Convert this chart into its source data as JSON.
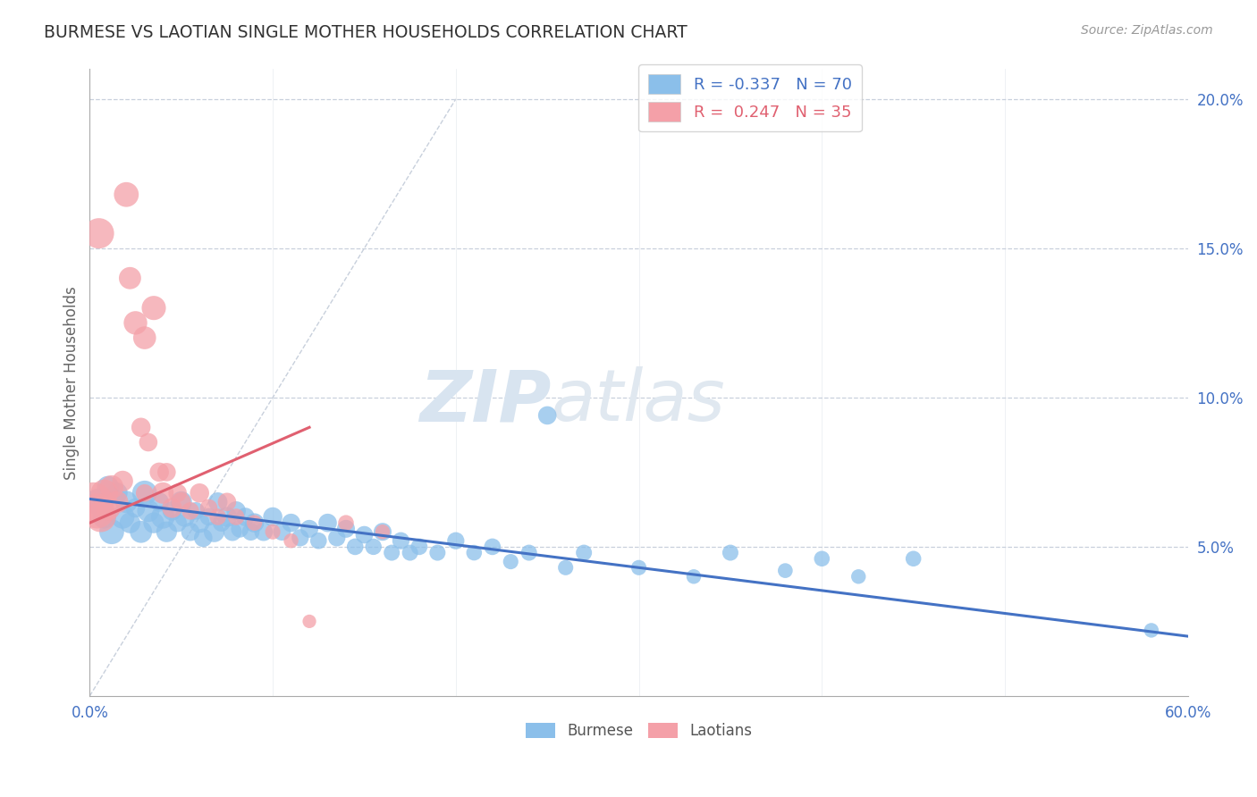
{
  "title": "BURMESE VS LAOTIAN SINGLE MOTHER HOUSEHOLDS CORRELATION CHART",
  "source": "Source: ZipAtlas.com",
  "ylabel": "Single Mother Households",
  "yticks": [
    0.0,
    0.05,
    0.1,
    0.15,
    0.2
  ],
  "ytick_labels": [
    "",
    "5.0%",
    "10.0%",
    "15.0%",
    "20.0%"
  ],
  "xlim": [
    0.0,
    0.6
  ],
  "ylim": [
    0.0,
    0.21
  ],
  "blue_R": -0.337,
  "blue_N": 70,
  "pink_R": 0.247,
  "pink_N": 35,
  "blue_color": "#8BBFEA",
  "pink_color": "#F4A0A8",
  "blue_line_color": "#4472C4",
  "pink_line_color": "#E06070",
  "grid_color": "#C8D0DC",
  "diag_color": "#C8D0DC",
  "watermark_color": "#D8E4F0",
  "blue_trend_x": [
    0.0,
    0.6
  ],
  "blue_trend_y": [
    0.066,
    0.02
  ],
  "pink_trend_x": [
    0.0,
    0.12
  ],
  "pink_trend_y": [
    0.058,
    0.09
  ],
  "blue_scatter_x": [
    0.005,
    0.008,
    0.01,
    0.012,
    0.015,
    0.018,
    0.02,
    0.022,
    0.025,
    0.028,
    0.03,
    0.032,
    0.035,
    0.038,
    0.04,
    0.042,
    0.045,
    0.048,
    0.05,
    0.052,
    0.055,
    0.058,
    0.06,
    0.062,
    0.065,
    0.068,
    0.07,
    0.072,
    0.075,
    0.078,
    0.08,
    0.082,
    0.085,
    0.088,
    0.09,
    0.095,
    0.1,
    0.105,
    0.11,
    0.115,
    0.12,
    0.125,
    0.13,
    0.135,
    0.14,
    0.145,
    0.15,
    0.155,
    0.16,
    0.165,
    0.17,
    0.175,
    0.18,
    0.19,
    0.2,
    0.21,
    0.22,
    0.23,
    0.24,
    0.25,
    0.26,
    0.27,
    0.3,
    0.33,
    0.35,
    0.38,
    0.4,
    0.42,
    0.45,
    0.58
  ],
  "blue_scatter_y": [
    0.065,
    0.06,
    0.07,
    0.055,
    0.068,
    0.06,
    0.065,
    0.058,
    0.063,
    0.055,
    0.068,
    0.062,
    0.058,
    0.065,
    0.06,
    0.055,
    0.062,
    0.058,
    0.065,
    0.06,
    0.055,
    0.062,
    0.058,
    0.053,
    0.06,
    0.055,
    0.065,
    0.058,
    0.06,
    0.055,
    0.062,
    0.056,
    0.06,
    0.055,
    0.058,
    0.055,
    0.06,
    0.055,
    0.058,
    0.053,
    0.056,
    0.052,
    0.058,
    0.053,
    0.056,
    0.05,
    0.054,
    0.05,
    0.055,
    0.048,
    0.052,
    0.048,
    0.05,
    0.048,
    0.052,
    0.048,
    0.05,
    0.045,
    0.048,
    0.094,
    0.043,
    0.048,
    0.043,
    0.04,
    0.048,
    0.042,
    0.046,
    0.04,
    0.046,
    0.022
  ],
  "blue_scatter_sizes": [
    120,
    90,
    80,
    100,
    70,
    90,
    80,
    70,
    60,
    80,
    100,
    80,
    70,
    60,
    90,
    70,
    60,
    55,
    75,
    65,
    55,
    50,
    65,
    55,
    50,
    70,
    60,
    50,
    65,
    55,
    60,
    50,
    55,
    50,
    60,
    55,
    60,
    50,
    55,
    48,
    52,
    45,
    55,
    48,
    52,
    45,
    50,
    44,
    52,
    42,
    48,
    42,
    45,
    42,
    48,
    40,
    45,
    38,
    42,
    55,
    38,
    42,
    38,
    35,
    42,
    36,
    40,
    35,
    40,
    35
  ],
  "pink_scatter_x": [
    0.002,
    0.004,
    0.006,
    0.008,
    0.01,
    0.012,
    0.015,
    0.018,
    0.02,
    0.022,
    0.025,
    0.028,
    0.03,
    0.032,
    0.035,
    0.038,
    0.04,
    0.042,
    0.045,
    0.048,
    0.05,
    0.055,
    0.06,
    0.065,
    0.07,
    0.075,
    0.08,
    0.09,
    0.1,
    0.11,
    0.12,
    0.14,
    0.16,
    0.03,
    0.005
  ],
  "pink_scatter_y": [
    0.065,
    0.062,
    0.06,
    0.068,
    0.063,
    0.07,
    0.065,
    0.072,
    0.168,
    0.14,
    0.125,
    0.09,
    0.12,
    0.085,
    0.13,
    0.075,
    0.068,
    0.075,
    0.063,
    0.068,
    0.065,
    0.062,
    0.068,
    0.063,
    0.06,
    0.065,
    0.06,
    0.058,
    0.055,
    0.052,
    0.025,
    0.058,
    0.055,
    0.068,
    0.155
  ],
  "pink_scatter_sizes": [
    250,
    200,
    150,
    120,
    100,
    90,
    80,
    70,
    100,
    80,
    90,
    60,
    85,
    55,
    95,
    60,
    75,
    55,
    65,
    55,
    60,
    50,
    60,
    50,
    45,
    55,
    45,
    40,
    38,
    35,
    30,
    40,
    35,
    50,
    150
  ]
}
